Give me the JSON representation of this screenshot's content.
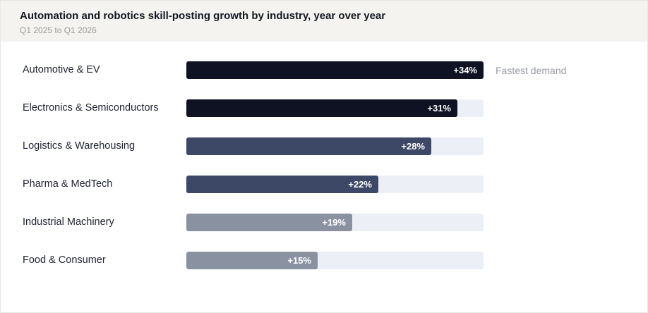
{
  "chart_data": {
    "type": "bar",
    "orientation": "horizontal",
    "title": "Automation and robotics skill-posting growth by industry, year over year",
    "subtitle": "Q1 2025 to Q1 2026",
    "categories": [
      "Automotive & EV",
      "Electronics & Semiconductors",
      "Logistics & Warehousing",
      "Pharma & MedTech",
      "Industrial Machinery",
      "Food & Consumer"
    ],
    "values": [
      34,
      31,
      28,
      22,
      19,
      15
    ],
    "value_labels": [
      "+34%",
      "+31%",
      "+28%",
      "+22%",
      "+19%",
      "+15%"
    ],
    "bar_colors": [
      "#0f1222",
      "#0f1222",
      "#3d4866",
      "#3d4866",
      "#8a92a2",
      "#8a92a2"
    ],
    "track_color": "#eceff6",
    "xlim": [
      0,
      34
    ],
    "annotation": {
      "category": "Automotive & EV",
      "text": "Fastest demand"
    },
    "legend": "none",
    "grid": false
  }
}
